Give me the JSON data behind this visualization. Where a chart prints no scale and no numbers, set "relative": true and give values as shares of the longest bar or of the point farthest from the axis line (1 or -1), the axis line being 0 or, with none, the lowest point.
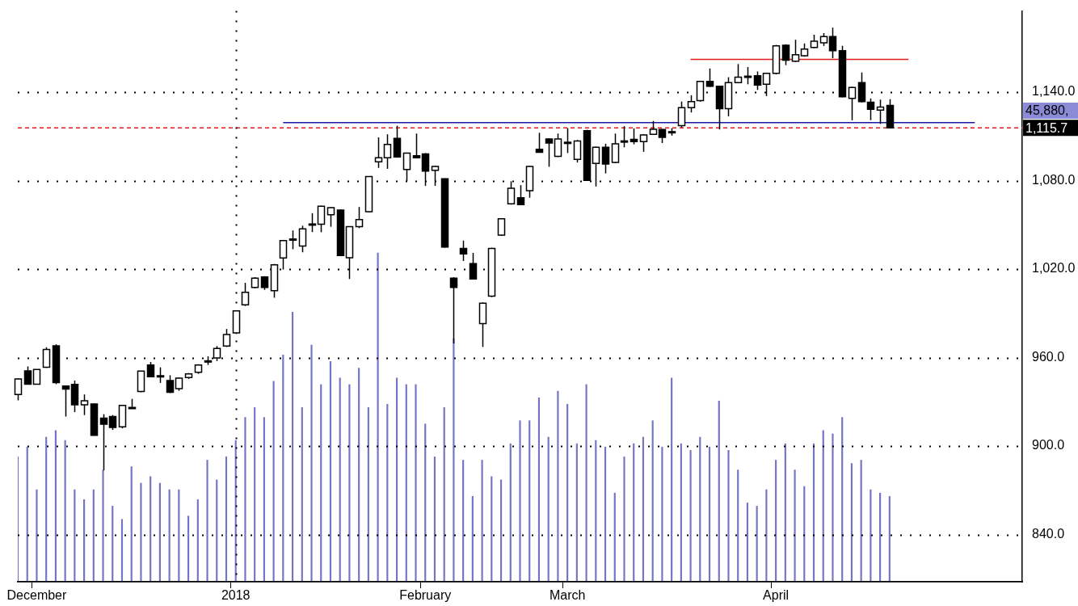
{
  "chart_data": [
    {
      "type": "candlestick",
      "categories": [
        null,
        null,
        "December",
        null,
        null,
        null,
        null,
        null,
        null,
        null,
        null,
        null,
        null,
        null,
        null,
        null,
        null,
        null,
        null,
        null,
        null,
        null,
        null,
        "2018",
        null,
        null,
        null,
        null,
        null,
        null,
        null,
        null,
        null,
        null,
        null,
        null,
        null,
        null,
        null,
        null,
        null,
        null,
        null,
        "February",
        null,
        null,
        null,
        null,
        null,
        null,
        null,
        null,
        null,
        null,
        null,
        null,
        null,
        null,
        "March",
        null,
        null,
        null,
        null,
        null,
        null,
        null,
        null,
        null,
        null,
        null,
        null,
        null,
        null,
        null,
        null,
        null,
        null,
        null,
        null,
        null,
        "April",
        null,
        null,
        null,
        null,
        null,
        null,
        null,
        null,
        null,
        null,
        null,
        null,
        null,
        null,
        null,
        null,
        null,
        null,
        null,
        null,
        null,
        null,
        null,
        null,
        null,
        null
      ],
      "ohlc": [
        [
          935,
          946,
          931,
          945.5
        ],
        [
          951,
          954,
          942,
          942
        ],
        [
          942,
          952,
          942,
          952
        ],
        [
          953.5,
          967,
          953,
          965.5
        ],
        [
          968,
          969,
          942,
          943
        ],
        [
          940.7,
          941,
          920,
          938.6
        ],
        [
          941.8,
          944.4,
          923,
          928
        ],
        [
          928,
          935,
          921,
          930.7
        ],
        [
          928.5,
          929,
          907,
          907.3
        ],
        [
          919,
          921.6,
          883.5,
          914.8
        ],
        [
          920,
          921,
          911,
          912.6
        ],
        [
          913,
          928,
          912,
          927.5
        ],
        [
          925.8,
          932,
          925.5,
          926.2
        ],
        [
          937,
          951,
          936.5,
          950.8
        ],
        [
          955,
          957,
          947,
          947
        ],
        [
          947.5,
          953.4,
          942.8,
          947.7
        ],
        [
          944.4,
          948,
          936,
          936.5
        ],
        [
          939,
          946.5,
          937.5,
          946
        ],
        [
          946.5,
          949.5,
          945.5,
          949
        ],
        [
          950,
          955.5,
          949,
          955
        ],
        [
          957.6,
          960.9,
          955,
          957.8
        ],
        [
          959.8,
          967.8,
          957.7,
          966.2
        ],
        [
          967.8,
          979.4,
          967.2,
          975.7
        ],
        [
          976.8,
          992,
          976,
          991.6
        ],
        [
          995.8,
          1010.7,
          995,
          1004.3
        ],
        [
          1007.5,
          1014.5,
          1007,
          1013.9
        ],
        [
          1014.7,
          1015.2,
          1005.9,
          1007.5
        ],
        [
          1005.4,
          1023.5,
          1000.6,
          1022.9
        ],
        [
          1027.6,
          1039.8,
          1019.7,
          1039.3
        ],
        [
          1040,
          1046.2,
          1033.5,
          1040.4
        ],
        [
          1035.6,
          1049.4,
          1031.4,
          1047.3
        ],
        [
          1050.3,
          1057.9,
          1045.1,
          1050.6
        ],
        [
          1050.4,
          1063,
          1045,
          1062.6
        ],
        [
          1056.8,
          1062,
          1048.7,
          1061.6
        ],
        [
          1060,
          1060.5,
          1029,
          1029.2
        ],
        [
          1027.7,
          1049,
          1013.3,
          1048.8
        ],
        [
          1048.8,
          1062.1,
          1047.8,
          1053.6
        ],
        [
          1058.9,
          1083,
          1058.5,
          1082.8
        ],
        [
          1092.8,
          1109.3,
          1088.6,
          1095.5
        ],
        [
          1095.5,
          1111.4,
          1088,
          1104.5
        ],
        [
          1108.7,
          1117.2,
          1095.5,
          1096
        ],
        [
          1087.5,
          1099,
          1079.6,
          1098.7
        ],
        [
          1096.8,
          1111.9,
          1095,
          1095.5
        ],
        [
          1098.1,
          1098.6,
          1076.4,
          1086.5
        ],
        [
          1087,
          1090,
          1076.4,
          1089.6
        ],
        [
          1081.2,
          1081.5,
          1034.5,
          1035
        ],
        [
          1013.9,
          1014.4,
          969.6,
          1007.5
        ],
        [
          1034,
          1039.3,
          1025.5,
          1030.3
        ],
        [
          1023.7,
          1031,
          1013,
          1013.3
        ],
        [
          983.1,
          997.4,
          967.2,
          996.9
        ],
        [
          1001.7,
          1034.5,
          1001,
          1034
        ],
        [
          1043,
          1054.5,
          1042.5,
          1054.1
        ],
        [
          1064.2,
          1079.5,
          1063.7,
          1074.8
        ],
        [
          1068.4,
          1076.9,
          1063.4,
          1063.7
        ],
        [
          1073.2,
          1090,
          1068.4,
          1089.6
        ],
        [
          1101.3,
          1112.4,
          1099,
          1099.2
        ],
        [
          1108.2,
          1108.7,
          1089.4,
          1105.5
        ],
        [
          1096.5,
          1111.9,
          1096,
          1108.2
        ],
        [
          1105.8,
          1115.6,
          1098.7,
          1106
        ],
        [
          1094.4,
          1107.5,
          1092.3,
          1106.9
        ],
        [
          1113.8,
          1114.5,
          1080,
          1080.1
        ],
        [
          1091.6,
          1103,
          1076,
          1102.6
        ],
        [
          1102.6,
          1105,
          1084.9,
          1091.2
        ],
        [
          1092.3,
          1111.9,
          1091.8,
          1105
        ],
        [
          1106.7,
          1116.9,
          1102.6,
          1106.9
        ],
        [
          1108,
          1115.4,
          1104.6,
          1106.4
        ],
        [
          1106.4,
          1111.5,
          1099.5,
          1111
        ],
        [
          1111.4,
          1120.4,
          1111,
          1114.8
        ],
        [
          1114.6,
          1115,
          1105.5,
          1109.3
        ],
        [
          1112.8,
          1115.5,
          1110.5,
          1113.2
        ],
        [
          1117.2,
          1133.6,
          1116,
          1129.4
        ],
        [
          1129.4,
          1137.9,
          1126.2,
          1133.6
        ],
        [
          1134.2,
          1147.5,
          1133.5,
          1147.2
        ],
        [
          1147.2,
          1156,
          1143.5,
          1143.9
        ],
        [
          1143.9,
          1144.2,
          1114.7,
          1128.7
        ],
        [
          1128.7,
          1150.1,
          1123.6,
          1146.4
        ],
        [
          1146.4,
          1159,
          1146,
          1150.1
        ],
        [
          1150.4,
          1157,
          1145.3,
          1150.8
        ],
        [
          1151.1,
          1154,
          1141.5,
          1144.8
        ],
        [
          1145.3,
          1153,
          1137.3,
          1152.7
        ],
        [
          1152.7,
          1172,
          1152,
          1171.3
        ],
        [
          1171.8,
          1172.4,
          1158.3,
          1161.7
        ],
        [
          1160.9,
          1175.5,
          1160.5,
          1165.4
        ],
        [
          1164.6,
          1173,
          1164,
          1169.2
        ],
        [
          1170.2,
          1178.9,
          1169.8,
          1174.5
        ],
        [
          1173.4,
          1180,
          1171.3,
          1177.6
        ],
        [
          1177.6,
          1183.7,
          1163,
          1168.1
        ],
        [
          1168.1,
          1171.4,
          1136.5,
          1136.8
        ],
        [
          1135.8,
          1143.6,
          1120.9,
          1143.2
        ],
        [
          1146.4,
          1153.3,
          1133,
          1133.6
        ],
        [
          1133.1,
          1135.7,
          1121,
          1128.3
        ],
        [
          1127.8,
          1134.9,
          1118.4,
          1129.9
        ],
        [
          1131,
          1135.2,
          1115.5,
          1115.7
        ],
        null,
        null,
        null,
        null,
        null,
        null,
        null,
        null,
        null,
        null,
        null,
        null,
        null,
        null
      ],
      "series": [
        {
          "type": "line",
          "color": "#1a1aa8",
          "values": [
            null,
            null,
            null,
            null,
            null,
            null,
            null,
            null,
            null,
            null,
            null,
            null,
            null,
            null,
            null,
            null,
            null,
            null,
            null,
            null,
            null,
            null,
            null,
            null,
            null,
            null,
            null,
            null,
            1119.3,
            null,
            null,
            null,
            null,
            null,
            null,
            null,
            null,
            null,
            null,
            null,
            null,
            null,
            null,
            null,
            null,
            null,
            null,
            null,
            null,
            null,
            null,
            null,
            null,
            null,
            null,
            null,
            null,
            null,
            null,
            null,
            null,
            null,
            null,
            null,
            null,
            null,
            null,
            null,
            null,
            null,
            null,
            null,
            null,
            null,
            null,
            null,
            null,
            null,
            null,
            null,
            null,
            null,
            null,
            null,
            null,
            null,
            null,
            null,
            null,
            null,
            null,
            null,
            null,
            null,
            null,
            null,
            null,
            null,
            null,
            null,
            null,
            1119.3,
            null,
            null,
            null,
            null,
            null
          ]
        },
        {
          "type": "line",
          "color": "#e31a1a",
          "values": [
            null,
            null,
            null,
            null,
            null,
            null,
            null,
            null,
            null,
            null,
            null,
            null,
            null,
            null,
            null,
            null,
            null,
            null,
            null,
            null,
            null,
            null,
            null,
            null,
            null,
            null,
            null,
            null,
            null,
            null,
            null,
            null,
            null,
            null,
            null,
            null,
            null,
            null,
            null,
            null,
            null,
            null,
            null,
            null,
            null,
            null,
            null,
            null,
            null,
            null,
            null,
            null,
            null,
            null,
            null,
            null,
            null,
            null,
            null,
            null,
            null,
            null,
            null,
            null,
            null,
            null,
            null,
            null,
            null,
            null,
            null,
            1162.2,
            null,
            null,
            null,
            null,
            null,
            null,
            null,
            null,
            null,
            null,
            null,
            null,
            null,
            null,
            null,
            null,
            null,
            null,
            null,
            null,
            null,
            null,
            1162.2,
            null,
            null,
            null,
            null,
            null,
            null,
            null,
            null,
            null,
            null,
            null,
            null
          ]
        }
      ],
      "ylim": [
        808,
        1195
      ],
      "yticks": [
        {
          "value": 840,
          "label": "840.0"
        },
        {
          "value": 900,
          "label": "900.0"
        },
        {
          "value": 960,
          "label": "960.0"
        },
        {
          "value": 1020,
          "label": "1,020.0"
        },
        {
          "value": 1080,
          "label": "1,080.0"
        },
        {
          "value": 1140,
          "label": "1,140.0"
        }
      ],
      "grid": "y",
      "ref_lines": [
        {
          "axis": "y",
          "value": 1115.7,
          "label": "1,115.7",
          "color": "#e31a1a",
          "line_style": "dashed"
        },
        {
          "axis": "x",
          "value": "2018",
          "color": "#000000",
          "line_style": "dotted"
        }
      ],
      "annotations": [
        "45,880,"
      ]
    },
    {
      "type": "bar",
      "relative": true,
      "color": "#7474c4",
      "categories": [
        null,
        null,
        null,
        null,
        null,
        null,
        null,
        null,
        null,
        null,
        null,
        null,
        null,
        null,
        null,
        null,
        null,
        null,
        null,
        null,
        null,
        null,
        null,
        null,
        null,
        null,
        null,
        null,
        null,
        null,
        null,
        null,
        null,
        null,
        null,
        null,
        null,
        null,
        null,
        null,
        null,
        null,
        null,
        null,
        null,
        null,
        null,
        null,
        null,
        null,
        null,
        null,
        null,
        null,
        null,
        null,
        null,
        null,
        null,
        null,
        null,
        null,
        null,
        null,
        null,
        null,
        null,
        null,
        null,
        null,
        null,
        null,
        null,
        null,
        null,
        null,
        null,
        null,
        null,
        null,
        null,
        null,
        null,
        null,
        null,
        null,
        null,
        null,
        null,
        null,
        null,
        null,
        null,
        null,
        null,
        null,
        null,
        null,
        null,
        null,
        null,
        null,
        null,
        null,
        null,
        null,
        null
      ],
      "values": [
        0.38,
        0.41,
        0.28,
        0.44,
        0.46,
        0.43,
        0.28,
        0.25,
        0.28,
        0.34,
        0.23,
        0.19,
        0.35,
        0.3,
        0.32,
        0.3,
        0.28,
        0.28,
        0.2,
        0.25,
        0.37,
        0.31,
        0.38,
        0.43,
        0.5,
        0.53,
        0.5,
        0.61,
        0.69,
        0.82,
        0.53,
        0.72,
        0.6,
        0.67,
        0.62,
        0.6,
        0.65,
        0.53,
        1,
        0.54,
        0.62,
        0.6,
        0.6,
        0.48,
        0.38,
        0.53,
        0.74,
        0.37,
        0.26,
        0.37,
        0.32,
        0.31,
        0.42,
        0.49,
        0.49,
        0.56,
        0.44,
        0.58,
        0.54,
        0.42,
        0.6,
        0.43,
        0.41,
        0.27,
        0.38,
        0.42,
        0.44,
        0.49,
        0.41,
        0.62,
        0.42,
        0.4,
        0.44,
        0.41,
        0.55,
        0.4,
        0.34,
        0.24,
        0.23,
        0.28,
        0.37,
        0.42,
        0.34,
        0.29,
        0.42,
        0.46,
        0.45,
        0.5,
        0.36,
        0.37,
        0.28,
        0.27,
        0.26,
        null,
        null,
        null,
        null,
        null,
        null,
        null,
        null,
        null,
        null,
        null,
        null,
        null,
        null
      ]
    }
  ]
}
